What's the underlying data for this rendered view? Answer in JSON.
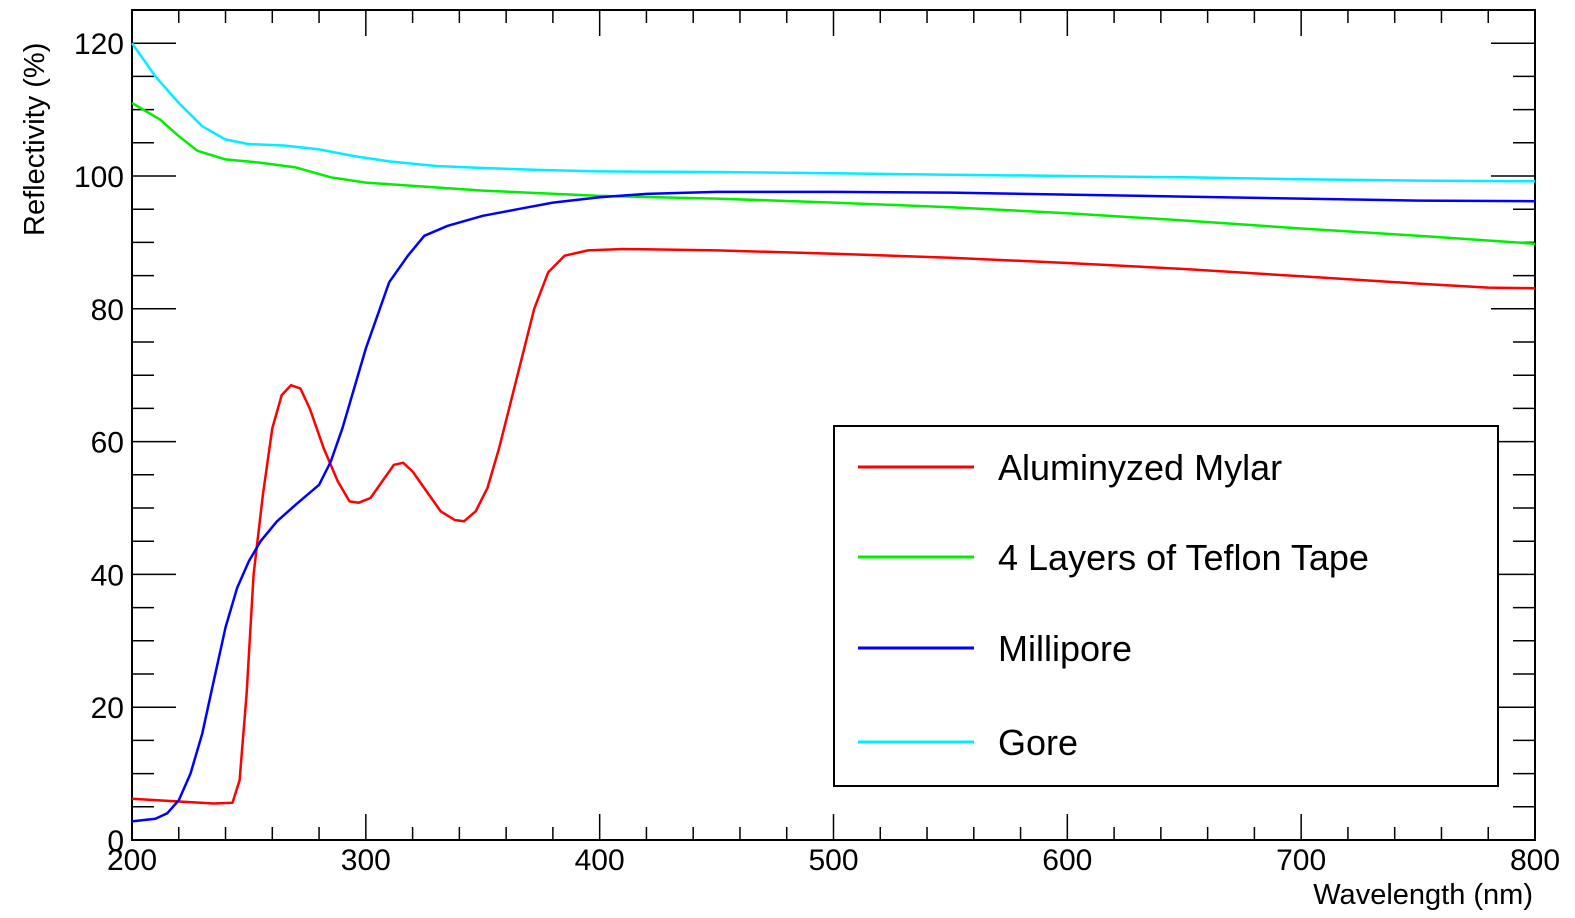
{
  "chart_data": {
    "type": "line",
    "title": "",
    "xlabel": "Wavelength (nm)",
    "ylabel": "Reflectivity (%)",
    "xlim": [
      200,
      800
    ],
    "ylim": [
      0,
      125
    ],
    "x_ticks": [
      200,
      300,
      400,
      500,
      600,
      700,
      800
    ],
    "x_tick_labels": [
      "200",
      "300",
      "400",
      "500",
      "600",
      "700",
      "800"
    ],
    "y_ticks": [
      0,
      20,
      40,
      60,
      80,
      100,
      120
    ],
    "y_tick_labels": [
      "0",
      "20",
      "40",
      "60",
      "80",
      "100",
      "120"
    ],
    "grid": false,
    "legend_position": "center-right",
    "series": [
      {
        "name": "Aluminyzed Mylar",
        "color": "#ff0000",
        "points": [
          [
            200,
            6.2
          ],
          [
            220,
            5.8
          ],
          [
            235,
            5.5
          ],
          [
            243,
            5.6
          ],
          [
            246,
            9
          ],
          [
            249,
            22
          ],
          [
            252,
            40
          ],
          [
            256,
            52
          ],
          [
            260,
            62
          ],
          [
            264,
            67
          ],
          [
            268,
            68.5
          ],
          [
            272,
            68
          ],
          [
            276,
            65
          ],
          [
            282,
            59
          ],
          [
            288,
            54
          ],
          [
            293,
            51
          ],
          [
            297,
            50.8
          ],
          [
            302,
            51.5
          ],
          [
            307,
            54
          ],
          [
            312,
            56.5
          ],
          [
            316,
            56.8
          ],
          [
            320,
            55.5
          ],
          [
            326,
            52.5
          ],
          [
            332,
            49.5
          ],
          [
            338,
            48.2
          ],
          [
            342,
            48
          ],
          [
            347,
            49.5
          ],
          [
            352,
            53
          ],
          [
            357,
            59
          ],
          [
            362,
            66
          ],
          [
            367,
            73
          ],
          [
            372,
            80
          ],
          [
            378,
            85.5
          ],
          [
            385,
            88
          ],
          [
            395,
            88.8
          ],
          [
            410,
            89
          ],
          [
            450,
            88.8
          ],
          [
            500,
            88.3
          ],
          [
            550,
            87.7
          ],
          [
            600,
            86.9
          ],
          [
            650,
            86
          ],
          [
            700,
            84.9
          ],
          [
            750,
            83.8
          ],
          [
            780,
            83.2
          ],
          [
            800,
            83.1
          ]
        ]
      },
      {
        "name": "4 Layers of Teflon Tape",
        "color": "#00ee00",
        "points": [
          [
            200,
            111
          ],
          [
            212,
            108.5
          ],
          [
            220,
            106
          ],
          [
            228,
            103.8
          ],
          [
            240,
            102.5
          ],
          [
            255,
            102
          ],
          [
            270,
            101.3
          ],
          [
            285,
            99.8
          ],
          [
            300,
            99
          ],
          [
            325,
            98.4
          ],
          [
            350,
            97.8
          ],
          [
            375,
            97.4
          ],
          [
            400,
            97
          ],
          [
            450,
            96.6
          ],
          [
            500,
            96
          ],
          [
            550,
            95.3
          ],
          [
            600,
            94.4
          ],
          [
            650,
            93.3
          ],
          [
            700,
            92.1
          ],
          [
            750,
            91
          ],
          [
            800,
            89.8
          ]
        ]
      },
      {
        "name": "Millipore",
        "color": "#0000ff",
        "points": [
          [
            200,
            2.8
          ],
          [
            210,
            3.2
          ],
          [
            215,
            4
          ],
          [
            220,
            6
          ],
          [
            225,
            10
          ],
          [
            230,
            16
          ],
          [
            235,
            24
          ],
          [
            240,
            32
          ],
          [
            245,
            38
          ],
          [
            250,
            42
          ],
          [
            255,
            45
          ],
          [
            262,
            48
          ],
          [
            270,
            50.5
          ],
          [
            280,
            53.5
          ],
          [
            285,
            57
          ],
          [
            290,
            62
          ],
          [
            295,
            68
          ],
          [
            300,
            74
          ],
          [
            305,
            79
          ],
          [
            310,
            84
          ],
          [
            318,
            88
          ],
          [
            325,
            91
          ],
          [
            335,
            92.5
          ],
          [
            350,
            94
          ],
          [
            365,
            95
          ],
          [
            380,
            96
          ],
          [
            400,
            96.8
          ],
          [
            420,
            97.3
          ],
          [
            450,
            97.6
          ],
          [
            500,
            97.6
          ],
          [
            550,
            97.5
          ],
          [
            600,
            97.2
          ],
          [
            650,
            96.9
          ],
          [
            700,
            96.6
          ],
          [
            750,
            96.3
          ],
          [
            800,
            96.2
          ]
        ]
      },
      {
        "name": "Gore",
        "color": "#00eeff",
        "points": [
          [
            200,
            120
          ],
          [
            210,
            115
          ],
          [
            220,
            111
          ],
          [
            230,
            107.5
          ],
          [
            240,
            105.5
          ],
          [
            250,
            104.8
          ],
          [
            265,
            104.6
          ],
          [
            280,
            104
          ],
          [
            295,
            103
          ],
          [
            310,
            102.2
          ],
          [
            330,
            101.5
          ],
          [
            350,
            101.2
          ],
          [
            375,
            100.9
          ],
          [
            400,
            100.7
          ],
          [
            450,
            100.6
          ],
          [
            500,
            100.4
          ],
          [
            550,
            100.2
          ],
          [
            600,
            100
          ],
          [
            650,
            99.8
          ],
          [
            700,
            99.5
          ],
          [
            750,
            99.3
          ],
          [
            800,
            99.2
          ]
        ]
      }
    ]
  }
}
